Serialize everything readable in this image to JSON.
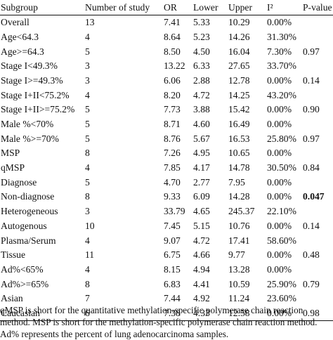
{
  "table": {
    "headers": [
      "Subgroup",
      "Number of study",
      "OR",
      "Lower",
      "Upper",
      "I²",
      "P-value"
    ],
    "rows": [
      [
        "Overall",
        "13",
        "7.41",
        "5.33",
        "10.29",
        "0.00%",
        ""
      ],
      [
        "Age<64.3",
        "4",
        "8.64",
        "5.23",
        "14.26",
        "31.30%",
        ""
      ],
      [
        "Age>=64.3",
        "5",
        "8.50",
        "4.50",
        "16.04",
        "7.30%",
        "0.97"
      ],
      [
        "Stage I<49.3%",
        "3",
        "13.22",
        "6.33",
        "27.65",
        "33.70%",
        ""
      ],
      [
        "Stage I>=49.3%",
        "3",
        "6.06",
        "2.88",
        "12.78",
        "0.00%",
        "0.14"
      ],
      [
        "Stage I+II<75.2%",
        "4",
        "8.20",
        "4.72",
        "14.25",
        "43.20%",
        ""
      ],
      [
        "Stage I+II>=75.2%",
        "5",
        "7.73",
        "3.88",
        "15.42",
        "0.00%",
        "0.90"
      ],
      [
        "Male %<70%",
        "5",
        "8.71",
        "4.60",
        "16.49",
        "0.00%",
        ""
      ],
      [
        "Male %>=70%",
        "5",
        "8.76",
        "5.67",
        "16.53",
        "25.80%",
        "0.97"
      ],
      [
        "MSP",
        "8",
        "7.26",
        "4.95",
        "10.65",
        "0.00%",
        ""
      ],
      [
        "qMSP",
        "4",
        "7.85",
        "4.17",
        "14.78",
        "30.50%",
        "0.84"
      ],
      [
        "Diagnose",
        "5",
        "4.70",
        "2.77",
        "7.95",
        "0.00%",
        ""
      ],
      [
        "Non-diagnose",
        "8",
        "9.33",
        "6.09",
        "14.28",
        "0.00%",
        "0.047"
      ],
      [
        "Heterogeneous",
        "3",
        "33.79",
        "4.65",
        "245.37",
        "22.10%",
        ""
      ],
      [
        "Autogenous",
        "10",
        "7.45",
        "5.15",
        "10.76",
        "0.00%",
        "0.14"
      ],
      [
        "Plasma/Serum",
        "4",
        "9.07",
        "4.72",
        "17.41",
        "58.60%",
        ""
      ],
      [
        "Tissue",
        "11",
        "6.75",
        "4.66",
        "9.77",
        "0.00%",
        "0.48"
      ],
      [
        "Ad%<65%",
        "4",
        "8.15",
        "4.94",
        "13.28",
        "0.00%",
        ""
      ],
      [
        "Ad%>=65%",
        "8",
        "6.83",
        "4.41",
        "10.59",
        "25.90%",
        "0.79"
      ],
      [
        "Asian",
        "7",
        "7.44",
        "4.92",
        "11.24",
        "23.60%",
        ""
      ],
      [
        "Caucasian",
        "6",
        "7.38",
        "4.33",
        "12.58",
        "0.00%",
        "0.98"
      ]
    ],
    "bold_cells": [
      "12-6"
    ]
  },
  "footnote": "qMSP is short for the quantitative methylation-specific polymerase chain reaction method. MSP is short for the methylation-specific polymerase chain reaction method. Ad% represents the percent of lung adenocarcinoma samples."
}
